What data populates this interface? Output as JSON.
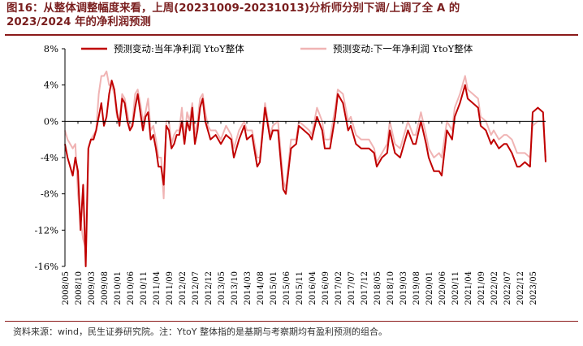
{
  "title_line1": "图16：从整体调整幅度来看，上周(20231009-20231013)分析师分别下调/上调了全  A  的",
  "title_line2": "2023/2024 年的净利润预测",
  "source": "资料来源：wind，民生证券研究院。注：YtoY 整体指的是基期与考察期均有盈利预测的组合。",
  "colors": {
    "current_year": "#c00000",
    "next_year": "#f0b4b4",
    "accent": "#8b1a1a"
  },
  "chart_data": {
    "type": "line",
    "title": "",
    "xlabel": "",
    "ylabel": "",
    "ylim": [
      -16,
      8
    ],
    "yticks": [
      {
        "value": 8,
        "label": "8%"
      },
      {
        "value": 4,
        "label": "4%"
      },
      {
        "value": 0,
        "label": "0%"
      },
      {
        "value": -4,
        "label": "-4%"
      },
      {
        "value": -8,
        "label": "-8%"
      },
      {
        "value": -12,
        "label": "-12%"
      },
      {
        "value": -16,
        "label": "-16%"
      }
    ],
    "grid": false,
    "legend_placement": "top",
    "xticks": [
      "2008/05",
      "2008/10",
      "2009/03",
      "2009/08",
      "2010/01",
      "2010/06",
      "2010/11",
      "2011/04",
      "2011/09",
      "2012/02",
      "2012/07",
      "2012/12",
      "2013/05",
      "2013/10",
      "2014/03",
      "2014/08",
      "2015/01",
      "2015/06",
      "2015/11",
      "2016/04",
      "2016/09",
      "2017/02",
      "2017/07",
      "2017/12",
      "2018/05",
      "2018/10",
      "2019/03",
      "2019/08",
      "2020/01",
      "2020/06",
      "2020/11",
      "2021/04",
      "2021/09",
      "2022/02",
      "2022/07",
      "2022/12",
      "2023/05"
    ],
    "x": [
      "2008/05",
      "2008/06",
      "2008/08",
      "2008/09",
      "2008/10",
      "2008/11",
      "2008/12",
      "2009/01",
      "2009/02",
      "2009/03",
      "2009/04",
      "2009/05",
      "2009/06",
      "2009/07",
      "2009/08",
      "2009/09",
      "2009/10",
      "2009/11",
      "2009/12",
      "2010/01",
      "2010/02",
      "2010/03",
      "2010/04",
      "2010/05",
      "2010/06",
      "2010/07",
      "2010/08",
      "2010/09",
      "2010/10",
      "2010/11",
      "2010/12",
      "2011/01",
      "2011/02",
      "2011/03",
      "2011/04",
      "2011/05",
      "2011/06",
      "2011/07",
      "2011/08",
      "2011/09",
      "2011/10",
      "2011/11",
      "2011/12",
      "2012/01",
      "2012/02",
      "2012/03",
      "2012/04",
      "2012/05",
      "2012/06",
      "2012/07",
      "2012/08",
      "2012/09",
      "2012/10",
      "2012/11",
      "2012/12",
      "2013/01",
      "2013/03",
      "2013/05",
      "2013/07",
      "2013/09",
      "2013/10",
      "2013/12",
      "2014/02",
      "2014/03",
      "2014/05",
      "2014/07",
      "2014/08",
      "2014/10",
      "2014/12",
      "2015/01",
      "2015/03",
      "2015/05",
      "2015/06",
      "2015/08",
      "2015/10",
      "2015/11",
      "2016/01",
      "2016/03",
      "2016/04",
      "2016/06",
      "2016/08",
      "2016/09",
      "2016/11",
      "2017/01",
      "2017/02",
      "2017/04",
      "2017/06",
      "2017/07",
      "2017/09",
      "2017/11",
      "2017/12",
      "2018/02",
      "2018/04",
      "2018/05",
      "2018/07",
      "2018/09",
      "2018/10",
      "2018/12",
      "2019/02",
      "2019/03",
      "2019/05",
      "2019/07",
      "2019/08",
      "2019/10",
      "2019/12",
      "2020/01",
      "2020/03",
      "2020/05",
      "2020/06",
      "2020/08",
      "2020/10",
      "2020/11",
      "2021/01",
      "2021/03",
      "2021/04",
      "2021/06",
      "2021/08",
      "2021/09",
      "2021/11",
      "2022/01",
      "2022/02",
      "2022/04",
      "2022/06",
      "2022/07",
      "2022/09",
      "2022/11",
      "2022/12",
      "2023/02",
      "2023/04",
      "2023/05",
      "2023/07",
      "2023/09",
      "2023/10"
    ],
    "series": [
      {
        "name": "预测变动:当年净利润 YtoY整体",
        "values": [
          -2.5,
          -4,
          -6,
          -4,
          -5.5,
          -12,
          -7,
          -16,
          -3,
          -2,
          -2,
          -1,
          0.5,
          2,
          -0.5,
          0.5,
          3,
          4.5,
          3.5,
          1,
          -0.5,
          2.5,
          2,
          0,
          -1,
          -0.5,
          1.5,
          3,
          1,
          -1,
          0.5,
          1,
          -2,
          -1.5,
          -3,
          -5,
          -5,
          -7,
          -0.5,
          -1,
          -3,
          -2.5,
          -1.5,
          -1.5,
          0,
          -2.5,
          0,
          -1,
          1.5,
          -2.5,
          -1,
          1.5,
          2.5,
          0,
          -1,
          -2,
          -1.5,
          -2.5,
          -1.5,
          -2,
          -4,
          -2,
          -0.5,
          -2,
          -1.5,
          -5,
          -4.5,
          1.5,
          -2,
          -1,
          -1,
          -7.5,
          -8,
          -3,
          -2.5,
          -0.5,
          -1,
          -1.5,
          -2,
          0.5,
          -1,
          -3,
          -3,
          0.5,
          3,
          2,
          -1,
          -0.5,
          -2.5,
          -3,
          -3,
          -3,
          -3.5,
          -5,
          -4,
          -3.5,
          -1,
          -3.5,
          -4,
          -3,
          -1,
          -2.5,
          -2.5,
          0,
          -2.5,
          -4,
          -5.5,
          -5.5,
          -6,
          -1,
          -2,
          0.5,
          2,
          4,
          2.5,
          2,
          1.5,
          -0.5,
          -1,
          -2.5,
          -2,
          -3,
          -2.5,
          -2.5,
          -3.5,
          -5,
          -5,
          -4.5,
          -5,
          1,
          1.5,
          1,
          -4.5
        ]
      },
      {
        "name": "预测变动:下一年净利润 YtoY整体",
        "values": [
          -1,
          -2,
          -3,
          -2.5,
          -8,
          -11,
          -13,
          -14,
          -3,
          -2,
          -1.5,
          -1,
          3,
          5,
          5,
          5.5,
          4,
          4,
          3,
          0.5,
          0,
          3,
          2.5,
          1,
          -1,
          0,
          3,
          3.5,
          2,
          0,
          1,
          2.5,
          -1,
          -0.5,
          -2,
          -4,
          -4,
          -8.5,
          0,
          0,
          -2.5,
          -1.5,
          -1,
          -1,
          1.5,
          -2,
          1,
          0,
          2,
          -1.5,
          0,
          2.5,
          3,
          1,
          -0.5,
          -1,
          -1,
          -2,
          -0.5,
          -1.5,
          -3,
          -1,
          0,
          -1,
          -1,
          -4,
          -4,
          2,
          -1.5,
          -0.5,
          0,
          -6.5,
          -7.5,
          -2,
          -2,
          0,
          -0.5,
          -1,
          -1.5,
          1.5,
          0,
          -2,
          -2,
          1.5,
          3.5,
          3,
          0,
          0.5,
          -1.5,
          -2,
          -2,
          -2,
          -3,
          -4.5,
          -3.5,
          -2.5,
          0,
          -2.5,
          -3,
          -2,
          0,
          -1.5,
          -1.5,
          1,
          -1.5,
          -3,
          -4,
          -3.5,
          -4,
          0,
          -1,
          1.5,
          3,
          5,
          3.5,
          3,
          2.5,
          0.5,
          0,
          -1.5,
          -1,
          -2,
          -1.5,
          -1.5,
          -2,
          -3.5,
          -3.5,
          -3.5,
          -4,
          -0.5,
          0,
          0,
          -4
        ]
      }
    ]
  }
}
